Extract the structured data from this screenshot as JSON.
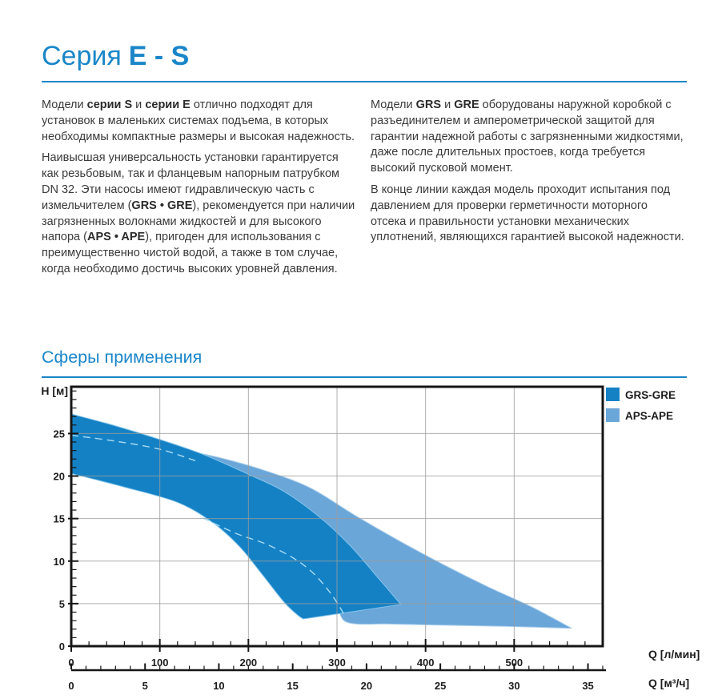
{
  "header": {
    "title_prefix": "Серия",
    "title_series": "E - S",
    "accent_color": "#1a86c8"
  },
  "intro": {
    "left": [
      [
        {
          "t": "Модели "
        },
        {
          "t": "серии S",
          "b": 1
        },
        {
          "t": " и "
        },
        {
          "t": "серии E",
          "b": 1
        },
        {
          "t": " отлично подходят для установок в маленьких системах подъема, в которых необходимы компактные размеры и высокая надежность."
        }
      ],
      [
        {
          "t": "Наивысшая универсальность установки гарантируется как резьбовым, так и фланцевым напорным патрубком DN 32. Эти насосы имеют гидравлическую часть с измельчителем ("
        },
        {
          "t": "GRS • GRE",
          "b": 1
        },
        {
          "t": "), рекомендуется при наличии загрязненных волокнами жидкостей и для высокого напора ("
        },
        {
          "t": "APS • APE",
          "b": 1
        },
        {
          "t": "), пригоден для использования с преимущественно чистой водой, а также в том случае, когда необходимо достичь высоких уровней давления."
        }
      ]
    ],
    "right": [
      [
        {
          "t": "Модели "
        },
        {
          "t": "GRS",
          "b": 1
        },
        {
          "t": " и "
        },
        {
          "t": "GRE",
          "b": 1
        },
        {
          "t": " оборудованы наружной коробкой с разъединителем и амперометрической защитой для гарантии надежной работы с загрязненными жидкостями, даже после длительных простоев, когда требуется высокий пусковой момент."
        }
      ],
      [
        {
          "t": "В конце линии каждая модель проходит испытания под давлением для проверки герметичности моторного отсека и правильности установки механических уплотнений, являющихся гарантией высокой надежности."
        }
      ]
    ]
  },
  "applications": {
    "heading": "Сферы применения"
  },
  "chart_data": {
    "type": "area",
    "title": "",
    "y_axis": {
      "label": "H [м]",
      "range": [
        0,
        30.5
      ],
      "major_ticks": [
        0,
        5,
        10,
        15,
        20,
        25
      ],
      "minor_step": 1
    },
    "x_axis_primary": {
      "label": "Q [л/мин]",
      "range": [
        0,
        600
      ],
      "major_ticks": [
        0,
        100,
        200,
        300,
        400,
        500
      ],
      "minor_step": 20
    },
    "x_axis_secondary": {
      "label": "Q [м³/ч]",
      "range": [
        0,
        36
      ],
      "major_ticks": [
        0,
        5,
        10,
        15,
        20,
        25,
        30,
        35
      ],
      "minor_step": 1
    },
    "grid": {
      "x_lines": [
        100,
        200,
        300,
        400,
        500
      ],
      "y_lines": [
        5,
        10,
        15,
        20,
        25
      ],
      "color": "#9b9b9b"
    },
    "frame_color": "#161616",
    "legend": [
      {
        "name": "GRS-GRE",
        "color": "#1581c5"
      },
      {
        "name": "APS-APE",
        "color": "#6ba6d9"
      }
    ],
    "legend_position": "outside-top-right",
    "series": [
      {
        "name": "APS-APE",
        "color": "#6ba6d9",
        "edge_color": "#a9cfec",
        "upper": [
          [
            0,
            25.2
          ],
          [
            60,
            24.3
          ],
          [
            120,
            23.2
          ],
          [
            170,
            22.1
          ],
          [
            220,
            20.6
          ],
          [
            270,
            18.6
          ],
          [
            320,
            15.4
          ],
          [
            370,
            12.4
          ],
          [
            420,
            9.6
          ],
          [
            470,
            7.0
          ],
          [
            520,
            4.6
          ],
          [
            565,
            2.1
          ]
        ],
        "lower": [
          [
            0,
            23.6
          ],
          [
            60,
            22.2
          ],
          [
            120,
            20.2
          ],
          [
            170,
            17.6
          ],
          [
            210,
            14.6
          ],
          [
            250,
            10.6
          ],
          [
            280,
            7.0
          ],
          [
            300,
            4.4
          ],
          [
            313,
            2.75
          ],
          [
            360,
            2.6
          ],
          [
            430,
            2.45
          ],
          [
            500,
            2.3
          ],
          [
            565,
            2.1
          ]
        ]
      },
      {
        "name": "GRS-GRE",
        "color": "#1581c5",
        "edge_color": "#82c4e9",
        "upper": [
          [
            0,
            27.3
          ],
          [
            50,
            25.9
          ],
          [
            100,
            24.3
          ],
          [
            150,
            22.5
          ],
          [
            200,
            20.2
          ],
          [
            240,
            18.2
          ],
          [
            280,
            15.2
          ],
          [
            315,
            11.8
          ],
          [
            345,
            8.2
          ],
          [
            372,
            4.9
          ]
        ],
        "lower": [
          [
            0,
            20.3
          ],
          [
            60,
            18.7
          ],
          [
            120,
            16.9
          ],
          [
            160,
            14.5
          ],
          [
            190,
            11.7
          ],
          [
            215,
            8.5
          ],
          [
            240,
            5.2
          ],
          [
            255,
            3.7
          ],
          [
            262,
            3.2
          ]
        ]
      }
    ],
    "dashed_guides": {
      "color": "#a8dcf4",
      "curves": [
        [
          [
            0,
            24.8
          ],
          [
            50,
            24.1
          ],
          [
            100,
            23.15
          ],
          [
            140,
            21.8
          ]
        ],
        [
          [
            148,
            15.1
          ],
          [
            185,
            13.3
          ],
          [
            220,
            12.0
          ],
          [
            250,
            10.4
          ],
          [
            272,
            8.7
          ],
          [
            290,
            6.6
          ],
          [
            302,
            4.8
          ],
          [
            309,
            3.5
          ]
        ]
      ]
    }
  }
}
